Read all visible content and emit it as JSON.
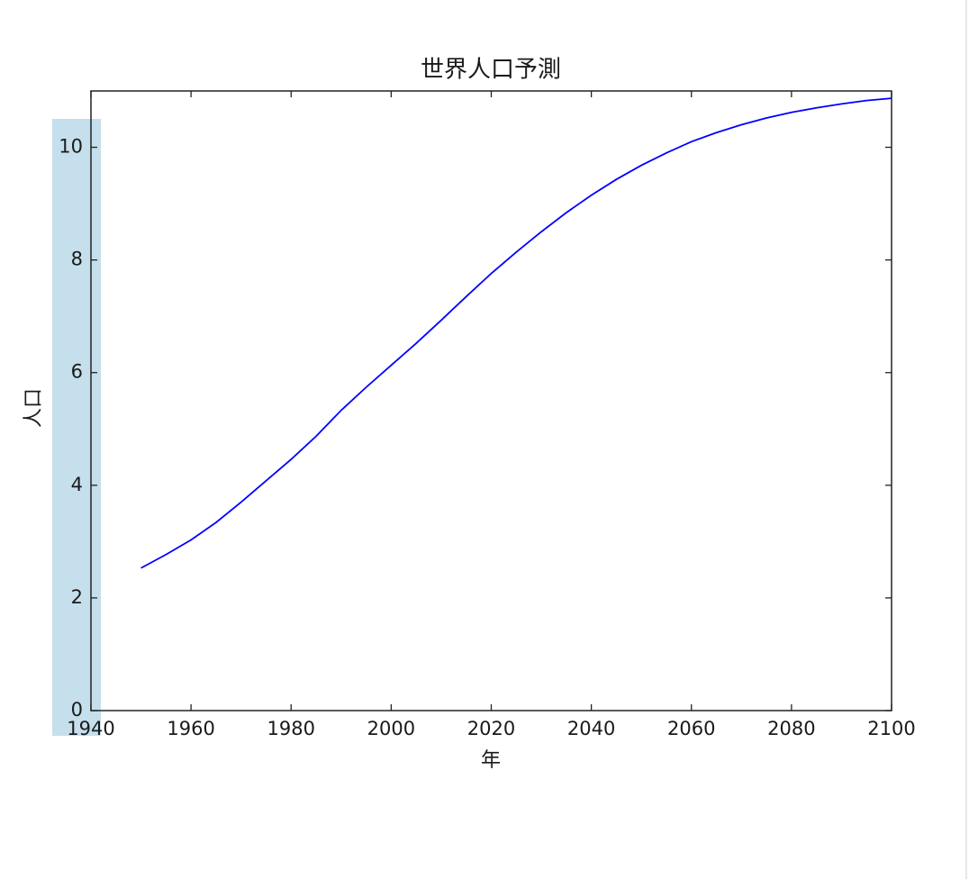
{
  "chart_data": {
    "type": "line",
    "title": "世界人口予測",
    "x_label": "年",
    "y_label": "人口",
    "x": [
      1950,
      1955,
      1960,
      1965,
      1970,
      1975,
      1980,
      1985,
      1990,
      1995,
      2000,
      2005,
      2010,
      2015,
      2020,
      2025,
      2030,
      2035,
      2040,
      2045,
      2050,
      2055,
      2060,
      2065,
      2070,
      2075,
      2080,
      2085,
      2090,
      2095,
      2100
    ],
    "series": [
      {
        "name": "人口",
        "color": "#0000ff",
        "values": [
          2.53,
          2.77,
          3.03,
          3.34,
          3.7,
          4.08,
          4.46,
          4.87,
          5.33,
          5.74,
          6.13,
          6.52,
          6.93,
          7.35,
          7.76,
          8.14,
          8.5,
          8.84,
          9.15,
          9.43,
          9.68,
          9.9,
          10.1,
          10.26,
          10.4,
          10.52,
          10.62,
          10.7,
          10.77,
          10.83,
          10.87
        ]
      }
    ],
    "xlim": [
      1940,
      2100
    ],
    "xticks": [
      1940,
      1960,
      1980,
      2000,
      2020,
      2040,
      2060,
      2080,
      2100
    ],
    "ylim": [
      0,
      11
    ],
    "yticks": [
      0,
      2,
      4,
      6,
      8,
      10
    ],
    "grid": false
  }
}
